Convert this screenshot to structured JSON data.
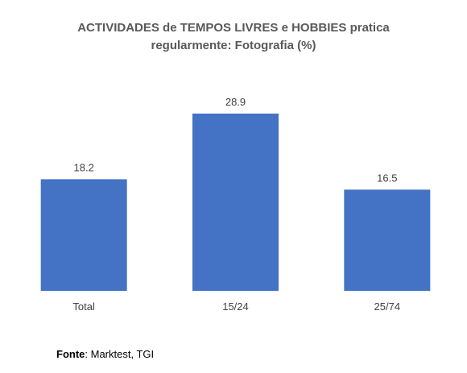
{
  "chart_data": {
    "type": "bar",
    "title_lines": [
      "ACTIVIDADES de TEMPOS LIVRES e HOBBIES pratica",
      "regularmente: Fotografia (%)"
    ],
    "categories": [
      "Total",
      "15/24",
      "25/74"
    ],
    "values": [
      18.2,
      28.9,
      16.5
    ],
    "value_labels": [
      "18.2",
      "28.9",
      "16.5"
    ],
    "bar_color": "#4472C4",
    "ylim": [
      0,
      28.9
    ],
    "grid": false,
    "legend": "none"
  },
  "source": {
    "label": "Fonte",
    "text": ": Marktest, TGI"
  }
}
